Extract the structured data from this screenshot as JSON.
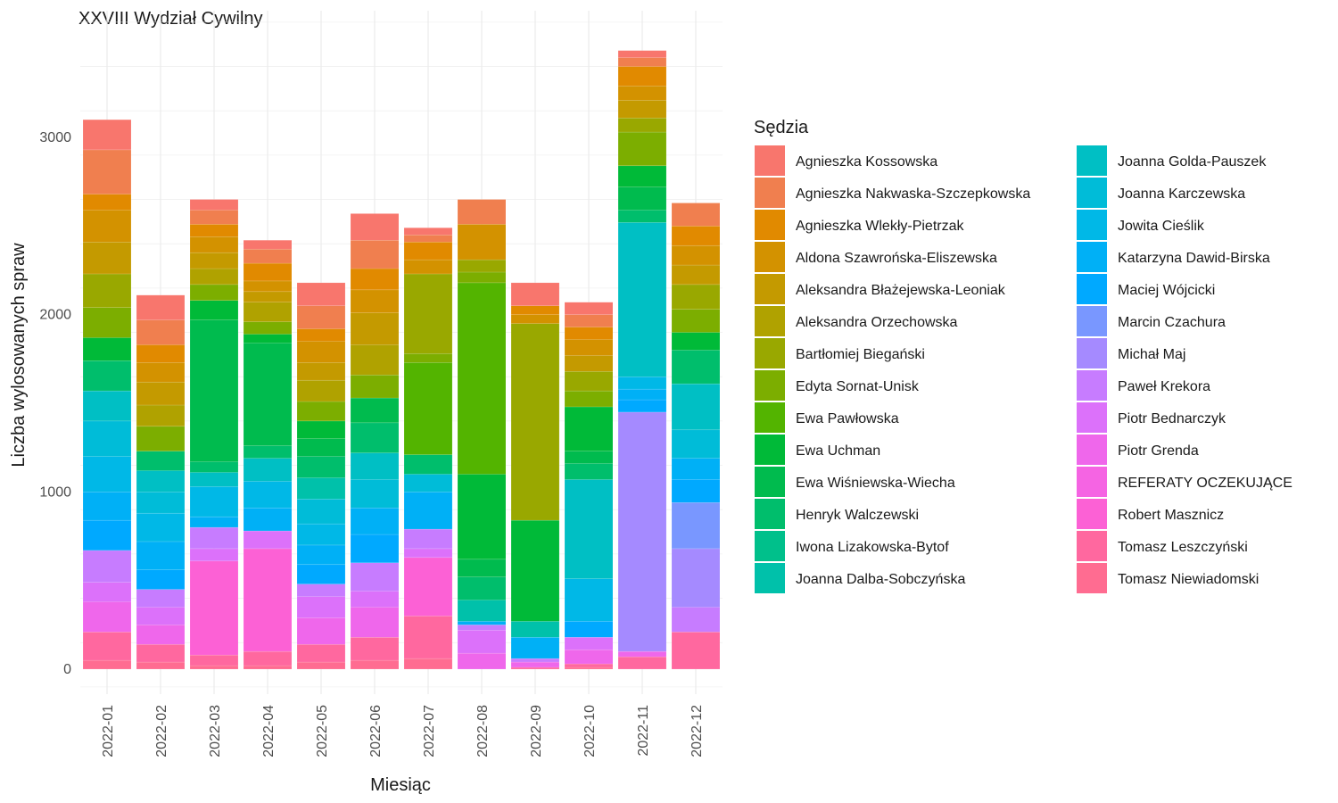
{
  "chart_data": {
    "type": "bar",
    "stacked": true,
    "title": "XXVIII Wydział Cywilny",
    "xlabel": "Miesiąc",
    "ylabel": "Liczba wylosowanych spraw",
    "ylim": [
      0,
      3600
    ],
    "yticks": [
      0,
      1000,
      2000,
      3000
    ],
    "grid": true,
    "legend": {
      "title": "Sędzia",
      "position": "right",
      "columns": 2
    },
    "categories": [
      "2022-01",
      "2022-02",
      "2022-03",
      "2022-04",
      "2022-05",
      "2022-06",
      "2022-07",
      "2022-08",
      "2022-09",
      "2022-10",
      "2022-11",
      "2022-12"
    ],
    "series": [
      {
        "name": "Tomasz Niewiadomski",
        "color": "#FF6C91",
        "values": [
          50,
          40,
          20,
          20,
          40,
          50,
          60,
          0,
          0,
          10,
          0,
          0
        ]
      },
      {
        "name": "Tomasz Leszczyński",
        "color": "#FF689F",
        "values": [
          160,
          100,
          60,
          80,
          100,
          130,
          240,
          0,
          10,
          20,
          70,
          210
        ]
      },
      {
        "name": "Robert Masznicz",
        "color": "#FC61D5",
        "values": [
          0,
          0,
          530,
          580,
          0,
          0,
          330,
          0,
          0,
          0,
          0,
          0
        ]
      },
      {
        "name": "REFERATY OCZEKUJĄCE",
        "color": "#F564E3",
        "values": [
          0,
          0,
          0,
          0,
          0,
          0,
          0,
          0,
          0,
          0,
          0,
          0
        ]
      },
      {
        "name": "Piotr Grenda",
        "color": "#EF67EB",
        "values": [
          170,
          110,
          0,
          0,
          150,
          170,
          0,
          90,
          30,
          80,
          30,
          0
        ]
      },
      {
        "name": "Piotr Bednarczyk",
        "color": "#DC71FA",
        "values": [
          110,
          100,
          70,
          100,
          120,
          90,
          50,
          130,
          0,
          70,
          0,
          0
        ]
      },
      {
        "name": "Paweł Krekora",
        "color": "#C77CFF",
        "values": [
          180,
          100,
          120,
          0,
          70,
          160,
          110,
          30,
          20,
          0,
          0,
          140
        ]
      },
      {
        "name": "Michał Maj",
        "color": "#A58AFF",
        "values": [
          0,
          0,
          0,
          0,
          0,
          0,
          0,
          0,
          0,
          0,
          1350,
          330
        ]
      },
      {
        "name": "Marcin Czachura",
        "color": "#7997FF",
        "values": [
          0,
          0,
          0,
          0,
          0,
          0,
          0,
          0,
          0,
          0,
          0,
          260
        ]
      },
      {
        "name": "Maciej Wójcicki",
        "color": "#00A9FF",
        "values": [
          170,
          110,
          0,
          0,
          110,
          160,
          0,
          0,
          0,
          90,
          70,
          130
        ]
      },
      {
        "name": "Katarzyna Dawid-Birska",
        "color": "#00B0F6",
        "values": [
          160,
          160,
          60,
          130,
          110,
          150,
          210,
          20,
          120,
          0,
          60,
          120
        ]
      },
      {
        "name": "Jowita Cieślik",
        "color": "#00B8E7",
        "values": [
          200,
          160,
          170,
          150,
          120,
          0,
          0,
          0,
          0,
          240,
          70,
          0
        ]
      },
      {
        "name": "Joanna Karczewska",
        "color": "#00BCD8",
        "values": [
          200,
          120,
          0,
          0,
          140,
          160,
          100,
          0,
          0,
          0,
          0,
          160
        ]
      },
      {
        "name": "Joanna Golda-Pauszek",
        "color": "#00BFC4",
        "values": [
          170,
          120,
          80,
          130,
          0,
          150,
          0,
          0,
          0,
          560,
          870,
          260
        ]
      },
      {
        "name": "Joanna Dalba-Sobczyńska",
        "color": "#00C1AA",
        "values": [
          0,
          0,
          0,
          0,
          120,
          0,
          0,
          120,
          90,
          0,
          0,
          0
        ]
      },
      {
        "name": "Iwona Lizakowska-Bytof",
        "color": "#00C08B",
        "values": [
          0,
          0,
          0,
          0,
          0,
          0,
          0,
          0,
          0,
          0,
          0,
          0
        ]
      },
      {
        "name": "Henryk Walczewski",
        "color": "#00BE6C",
        "values": [
          170,
          110,
          60,
          70,
          120,
          170,
          110,
          130,
          0,
          90,
          70,
          190
        ]
      },
      {
        "name": "Ewa Wiśniewska-Wiecha",
        "color": "#00BB4E",
        "values": [
          0,
          0,
          800,
          580,
          100,
          140,
          0,
          100,
          0,
          70,
          130,
          0
        ]
      },
      {
        "name": "Ewa Uchman",
        "color": "#00BA38",
        "values": [
          130,
          0,
          110,
          50,
          100,
          0,
          0,
          480,
          570,
          250,
          120,
          100
        ]
      },
      {
        "name": "Ewa Pawłowska",
        "color": "#53B400",
        "values": [
          0,
          0,
          0,
          0,
          0,
          0,
          520,
          1080,
          0,
          0,
          0,
          0
        ]
      },
      {
        "name": "Edyta Sornat-Unisk",
        "color": "#7CAE00",
        "values": [
          170,
          140,
          90,
          70,
          110,
          130,
          50,
          60,
          0,
          90,
          190,
          130
        ]
      },
      {
        "name": "Bartłomiej Biegański",
        "color": "#99A800",
        "values": [
          190,
          0,
          0,
          0,
          0,
          0,
          450,
          70,
          1110,
          110,
          80,
          140
        ]
      },
      {
        "name": "Aleksandra Orzechowska",
        "color": "#B0A200",
        "values": [
          0,
          120,
          90,
          110,
          120,
          170,
          0,
          0,
          0,
          0,
          0,
          0
        ]
      },
      {
        "name": "Aleksandra Błażejewska-Leoniak",
        "color": "#C49A00",
        "values": [
          180,
          130,
          90,
          60,
          100,
          180,
          0,
          0,
          0,
          90,
          100,
          110
        ]
      },
      {
        "name": "Aldona Szawrońska-Eliszewska",
        "color": "#D39200",
        "values": [
          180,
          110,
          90,
          60,
          120,
          130,
          80,
          200,
          50,
          90,
          80,
          110
        ]
      },
      {
        "name": "Agnieszka Wlekły-Pietrzak",
        "color": "#E18A00",
        "values": [
          90,
          100,
          70,
          100,
          70,
          120,
          100,
          0,
          50,
          70,
          110,
          110
        ]
      },
      {
        "name": "Agnieszka Nakwaska-Szczepkowska",
        "color": "#F07F4F",
        "values": [
          250,
          140,
          80,
          80,
          130,
          160,
          40,
          140,
          0,
          70,
          50,
          130
        ]
      },
      {
        "name": "Agnieszka Kossowska",
        "color": "#F8766D",
        "values": [
          170,
          140,
          60,
          50,
          130,
          150,
          40,
          0,
          130,
          70,
          40,
          0
        ]
      }
    ],
    "legend_order": [
      "Agnieszka Kossowska",
      "Agnieszka Nakwaska-Szczepkowska",
      "Agnieszka Wlekły-Pietrzak",
      "Aldona Szawrońska-Eliszewska",
      "Aleksandra Błażejewska-Leoniak",
      "Aleksandra Orzechowska",
      "Bartłomiej Biegański",
      "Edyta Sornat-Unisk",
      "Ewa Pawłowska",
      "Ewa Uchman",
      "Ewa Wiśniewska-Wiecha",
      "Henryk Walczewski",
      "Iwona Lizakowska-Bytof",
      "Joanna Dalba-Sobczyńska",
      "Joanna Golda-Pauszek",
      "Joanna Karczewska",
      "Jowita Cieślik",
      "Katarzyna Dawid-Birska",
      "Maciej Wójcicki",
      "Marcin Czachura",
      "Michał Maj",
      "Paweł Krekora",
      "Piotr Bednarczyk",
      "Piotr Grenda",
      "REFERATY OCZEKUJĄCE",
      "Robert Masznicz",
      "Tomasz Leszczyński",
      "Tomasz Niewiadomski"
    ]
  }
}
